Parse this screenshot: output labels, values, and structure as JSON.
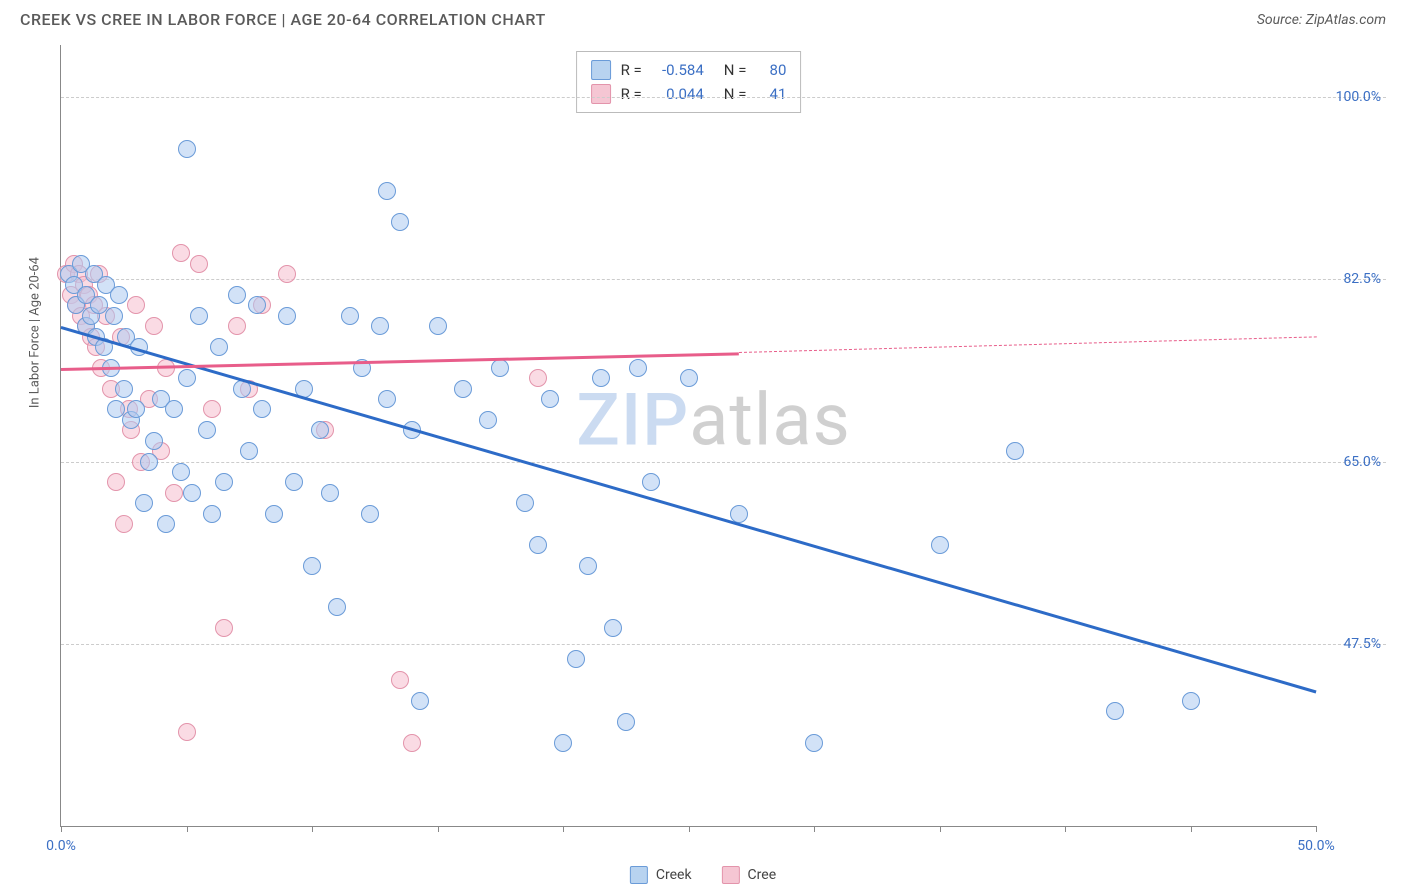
{
  "header": {
    "title": "CREEK VS CREE IN LABOR FORCE | AGE 20-64 CORRELATION CHART",
    "source": "Source: ZipAtlas.com"
  },
  "chart": {
    "type": "scatter",
    "y_axis_label": "In Labor Force | Age 20-64",
    "xlim": [
      0,
      50
    ],
    "ylim": [
      30,
      105
    ],
    "x_ticks": [
      0,
      5,
      10,
      15,
      20,
      25,
      30,
      35,
      40,
      45,
      50
    ],
    "x_tick_labels": {
      "0": "0.0%",
      "50": "50.0%"
    },
    "y_gridlines": [
      47.5,
      65.0,
      82.5,
      100.0
    ],
    "y_tick_labels": [
      "47.5%",
      "65.0%",
      "82.5%",
      "100.0%"
    ],
    "background_color": "#ffffff",
    "grid_color": "#cccccc",
    "axis_color": "#888888",
    "tick_label_color": "#3b6fc4",
    "series": {
      "creek": {
        "label": "Creek",
        "fill_color": "rgba(173,203,240,0.55)",
        "stroke_color": "#6a9bd8",
        "swatch_fill": "#b8d3f0",
        "swatch_stroke": "#6a9bd8",
        "line_color": "#2d6bc7",
        "marker_radius": 9,
        "R": "-0.584",
        "N": "80",
        "trend": {
          "x1": 0,
          "y1": 78,
          "x2": 50,
          "y2": 43
        },
        "points": [
          [
            0.3,
            83
          ],
          [
            0.5,
            82
          ],
          [
            0.6,
            80
          ],
          [
            0.8,
            84
          ],
          [
            1.0,
            78
          ],
          [
            1.0,
            81
          ],
          [
            1.2,
            79
          ],
          [
            1.3,
            83
          ],
          [
            1.4,
            77
          ],
          [
            1.5,
            80
          ],
          [
            1.7,
            76
          ],
          [
            1.8,
            82
          ],
          [
            2.0,
            74
          ],
          [
            2.1,
            79
          ],
          [
            2.2,
            70
          ],
          [
            2.3,
            81
          ],
          [
            2.5,
            72
          ],
          [
            2.6,
            77
          ],
          [
            2.8,
            69
          ],
          [
            3.0,
            70
          ],
          [
            3.1,
            76
          ],
          [
            3.3,
            61
          ],
          [
            3.5,
            65
          ],
          [
            3.7,
            67
          ],
          [
            4.0,
            71
          ],
          [
            4.2,
            59
          ],
          [
            4.5,
            70
          ],
          [
            4.8,
            64
          ],
          [
            5.0,
            73
          ],
          [
            5.0,
            95
          ],
          [
            5.2,
            62
          ],
          [
            5.5,
            79
          ],
          [
            5.8,
            68
          ],
          [
            6.0,
            60
          ],
          [
            6.3,
            76
          ],
          [
            6.5,
            63
          ],
          [
            7.0,
            81
          ],
          [
            7.2,
            72
          ],
          [
            7.5,
            66
          ],
          [
            7.8,
            80
          ],
          [
            8.0,
            70
          ],
          [
            8.5,
            60
          ],
          [
            9.0,
            79
          ],
          [
            9.3,
            63
          ],
          [
            9.7,
            72
          ],
          [
            10.0,
            55
          ],
          [
            10.3,
            68
          ],
          [
            10.7,
            62
          ],
          [
            11.0,
            51
          ],
          [
            11.5,
            79
          ],
          [
            12.0,
            74
          ],
          [
            12.3,
            60
          ],
          [
            12.7,
            78
          ],
          [
            13.0,
            71
          ],
          [
            13.0,
            91
          ],
          [
            13.5,
            88
          ],
          [
            14.0,
            68
          ],
          [
            14.3,
            42
          ],
          [
            15.0,
            78
          ],
          [
            16.0,
            72
          ],
          [
            17.0,
            69
          ],
          [
            17.5,
            74
          ],
          [
            18.5,
            61
          ],
          [
            19.0,
            57
          ],
          [
            19.5,
            71
          ],
          [
            20.0,
            38
          ],
          [
            20.5,
            46
          ],
          [
            21.0,
            55
          ],
          [
            21.5,
            73
          ],
          [
            22.0,
            49
          ],
          [
            22.5,
            40
          ],
          [
            23.0,
            74
          ],
          [
            23.5,
            63
          ],
          [
            25.0,
            73
          ],
          [
            27.0,
            60
          ],
          [
            30.0,
            38
          ],
          [
            35.0,
            57
          ],
          [
            38.0,
            66
          ],
          [
            42.0,
            41
          ],
          [
            45.0,
            42
          ]
        ]
      },
      "cree": {
        "label": "Cree",
        "fill_color": "rgba(245,190,205,0.55)",
        "stroke_color": "#e394ab",
        "swatch_fill": "#f5c6d3",
        "swatch_stroke": "#e394ab",
        "line_color": "#e85d8a",
        "marker_radius": 9,
        "R": "0.044",
        "N": "41",
        "trend_solid": {
          "x1": 0,
          "y1": 74,
          "x2": 27,
          "y2": 75.5
        },
        "trend_dashed": {
          "x1": 27,
          "y1": 75.5,
          "x2": 50,
          "y2": 77
        },
        "points": [
          [
            0.2,
            83
          ],
          [
            0.4,
            81
          ],
          [
            0.5,
            84
          ],
          [
            0.6,
            80
          ],
          [
            0.7,
            83
          ],
          [
            0.8,
            79
          ],
          [
            0.9,
            82
          ],
          [
            1.0,
            78
          ],
          [
            1.1,
            81
          ],
          [
            1.2,
            77
          ],
          [
            1.3,
            80
          ],
          [
            1.4,
            76
          ],
          [
            1.5,
            83
          ],
          [
            1.6,
            74
          ],
          [
            1.8,
            79
          ],
          [
            2.0,
            72
          ],
          [
            2.2,
            63
          ],
          [
            2.4,
            77
          ],
          [
            2.5,
            59
          ],
          [
            2.7,
            70
          ],
          [
            2.8,
            68
          ],
          [
            3.0,
            80
          ],
          [
            3.2,
            65
          ],
          [
            3.5,
            71
          ],
          [
            3.7,
            78
          ],
          [
            4.0,
            66
          ],
          [
            4.2,
            74
          ],
          [
            4.5,
            62
          ],
          [
            4.8,
            85
          ],
          [
            5.0,
            39
          ],
          [
            5.5,
            84
          ],
          [
            6.0,
            70
          ],
          [
            6.5,
            49
          ],
          [
            7.0,
            78
          ],
          [
            7.5,
            72
          ],
          [
            8.0,
            80
          ],
          [
            9.0,
            83
          ],
          [
            10.5,
            68
          ],
          [
            13.5,
            44
          ],
          [
            14.0,
            38
          ],
          [
            19.0,
            73
          ]
        ]
      }
    },
    "stats_box": {
      "rows": [
        {
          "swatch_series": "creek",
          "r_label": "R =",
          "n_label": "N ="
        },
        {
          "swatch_series": "cree",
          "r_label": "R =",
          "n_label": "N ="
        }
      ]
    },
    "legend": [
      {
        "series": "creek"
      },
      {
        "series": "cree"
      }
    ],
    "watermark": {
      "part1": "ZIP",
      "part2": "atlas"
    }
  }
}
